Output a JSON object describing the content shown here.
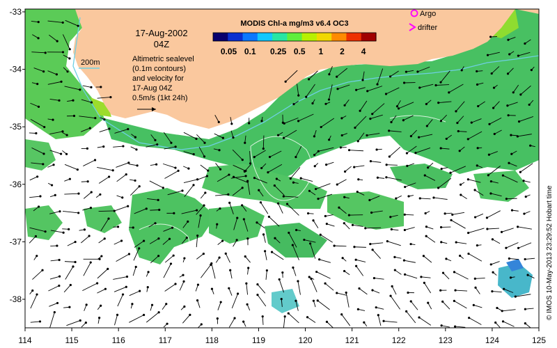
{
  "map": {
    "colorbar_title": "MODIS Chl-a mg/m3 v6.4 OC3",
    "colorbar_ticks": [
      "0.05",
      "0.1",
      "0.25",
      "0.5",
      "1",
      "2",
      "4"
    ],
    "colorbar_colors": [
      "#08006e",
      "#0a2fd0",
      "#0b78ff",
      "#12c8ff",
      "#27e6a4",
      "#60ee3c",
      "#b8f000",
      "#f1d800",
      "#ff8a00",
      "#ee3000",
      "#a00000"
    ],
    "date_line1": "17-Aug-2002",
    "date_line2": "04Z",
    "contour_label": "200m",
    "desc_lines": [
      "Altimetric sealevel",
      "(0.1m contours)",
      "and velocity for",
      "17-Aug 04Z",
      "0.5m/s (1kt 24h)"
    ],
    "legend_argo": "Argo",
    "legend_drifter": "drifter",
    "credit": "© IMOS 10-May-2013 23:29:52 Hobart time",
    "x_ticks": [
      "114",
      "115",
      "116",
      "117",
      "118",
      "119",
      "120",
      "121",
      "122",
      "123",
      "124",
      "125"
    ],
    "y_ticks": [
      "-33",
      "-34",
      "-35",
      "-36",
      "-37",
      "-38"
    ],
    "colors": {
      "land": "#fac89e",
      "argo": "#ff00ff",
      "drifter": "#ff00ff",
      "contour_200m": "#6ecfe2",
      "chl_mid": "#3fc25a"
    }
  }
}
